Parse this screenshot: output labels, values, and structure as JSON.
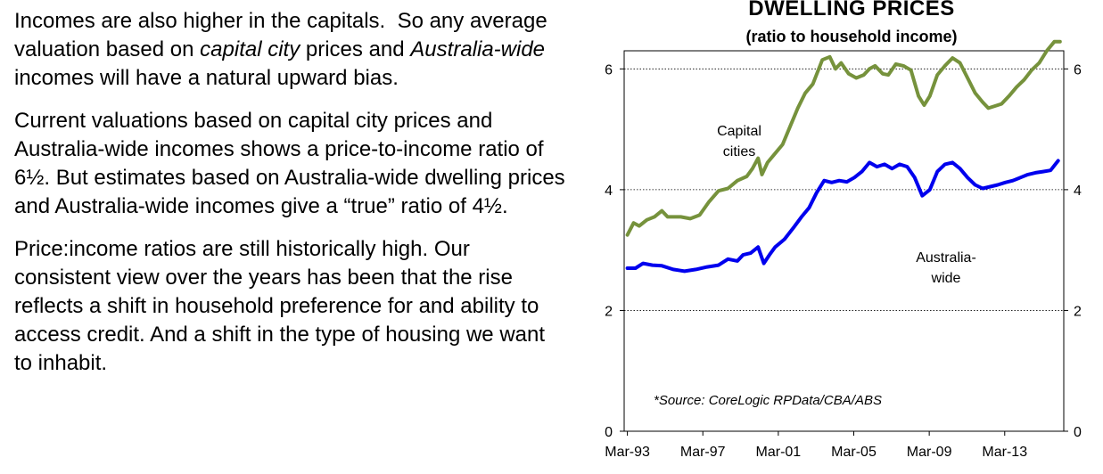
{
  "text": {
    "p1": {
      "s1": "Incomes are also higher in the capitals.  So any average valuation based on ",
      "e1": "capital city",
      "s2": " prices and ",
      "e2": "Australia-wide",
      "s3": " incomes will have a natural upward bias."
    },
    "p2": "Current valuations based on capital city prices and Australia-wide incomes shows a price-to-income ratio of 6½.  But estimates based on Australia-wide dwelling prices and Australia-wide incomes give a “true” ratio of 4½.",
    "p3": "Price:income ratios are still historically high.  Our consistent view over the years has been that the rise reflects a shift in household preference for and ability to access credit.  And a shift in the type of housing we want to inhabit."
  },
  "chart_data": {
    "type": "line",
    "title": "DWELLING PRICES",
    "subtitle": "(ratio to household income)",
    "source": "*Source: CoreLogic RPData/CBA/ABS",
    "ylim": [
      0,
      6.3
    ],
    "xlim": [
      1993.0,
      2016.3
    ],
    "y_ticks": [
      0,
      2,
      4,
      6
    ],
    "x_ticks": [
      {
        "label": "Mar-93",
        "value": 1993.17
      },
      {
        "label": "Mar-97",
        "value": 1997.17
      },
      {
        "label": "Mar-01",
        "value": 2001.17
      },
      {
        "label": "Mar-05",
        "value": 2005.17
      },
      {
        "label": "Mar-09",
        "value": 2009.17
      },
      {
        "label": "Mar-13",
        "value": 2013.17
      }
    ],
    "colors": {
      "capital": "#76923c",
      "australia": "#0000ee"
    },
    "series": [
      {
        "name": "Capital cities",
        "label_lines": [
          "Capital",
          "cities"
        ],
        "points": [
          [
            1993.17,
            3.25
          ],
          [
            1993.5,
            3.45
          ],
          [
            1993.8,
            3.4
          ],
          [
            1994.2,
            3.5
          ],
          [
            1994.6,
            3.55
          ],
          [
            1995.0,
            3.65
          ],
          [
            1995.3,
            3.55
          ],
          [
            1995.6,
            3.55
          ],
          [
            1996.0,
            3.55
          ],
          [
            1996.5,
            3.52
          ],
          [
            1997.0,
            3.58
          ],
          [
            1997.5,
            3.8
          ],
          [
            1998.0,
            3.98
          ],
          [
            1998.5,
            4.02
          ],
          [
            1999.0,
            4.15
          ],
          [
            1999.5,
            4.22
          ],
          [
            1999.8,
            4.35
          ],
          [
            2000.1,
            4.52
          ],
          [
            2000.3,
            4.25
          ],
          [
            2000.6,
            4.45
          ],
          [
            2001.0,
            4.6
          ],
          [
            2001.4,
            4.75
          ],
          [
            2001.8,
            5.05
          ],
          [
            2002.2,
            5.35
          ],
          [
            2002.6,
            5.6
          ],
          [
            2003.0,
            5.75
          ],
          [
            2003.5,
            6.15
          ],
          [
            2003.9,
            6.2
          ],
          [
            2004.2,
            6.0
          ],
          [
            2004.5,
            6.1
          ],
          [
            2004.9,
            5.92
          ],
          [
            2005.3,
            5.85
          ],
          [
            2005.7,
            5.9
          ],
          [
            2006.0,
            6.0
          ],
          [
            2006.3,
            6.05
          ],
          [
            2006.7,
            5.92
          ],
          [
            2007.0,
            5.9
          ],
          [
            2007.4,
            6.08
          ],
          [
            2007.8,
            6.05
          ],
          [
            2008.2,
            5.98
          ],
          [
            2008.6,
            5.55
          ],
          [
            2008.9,
            5.4
          ],
          [
            2009.2,
            5.55
          ],
          [
            2009.6,
            5.9
          ],
          [
            2010.0,
            6.05
          ],
          [
            2010.4,
            6.18
          ],
          [
            2010.8,
            6.1
          ],
          [
            2011.2,
            5.85
          ],
          [
            2011.6,
            5.6
          ],
          [
            2012.0,
            5.45
          ],
          [
            2012.3,
            5.35
          ],
          [
            2012.6,
            5.38
          ],
          [
            2013.0,
            5.42
          ],
          [
            2013.4,
            5.55
          ],
          [
            2013.8,
            5.7
          ],
          [
            2014.2,
            5.82
          ],
          [
            2014.6,
            5.98
          ],
          [
            2015.0,
            6.1
          ],
          [
            2015.4,
            6.3
          ],
          [
            2015.8,
            6.45
          ],
          [
            2016.1,
            6.45
          ]
        ]
      },
      {
        "name": "Australia-wide",
        "label_lines": [
          "Australia-",
          "wide"
        ],
        "points": [
          [
            1993.17,
            2.7
          ],
          [
            1993.6,
            2.7
          ],
          [
            1994.0,
            2.78
          ],
          [
            1994.5,
            2.75
          ],
          [
            1995.0,
            2.74
          ],
          [
            1995.6,
            2.68
          ],
          [
            1996.2,
            2.65
          ],
          [
            1996.8,
            2.68
          ],
          [
            1997.4,
            2.72
          ],
          [
            1998.0,
            2.75
          ],
          [
            1998.5,
            2.85
          ],
          [
            1999.0,
            2.82
          ],
          [
            1999.3,
            2.92
          ],
          [
            1999.7,
            2.95
          ],
          [
            2000.1,
            3.05
          ],
          [
            2000.4,
            2.78
          ],
          [
            2000.7,
            2.92
          ],
          [
            2001.0,
            3.05
          ],
          [
            2001.5,
            3.18
          ],
          [
            2002.0,
            3.38
          ],
          [
            2002.4,
            3.55
          ],
          [
            2002.8,
            3.7
          ],
          [
            2003.2,
            3.95
          ],
          [
            2003.6,
            4.15
          ],
          [
            2004.0,
            4.12
          ],
          [
            2004.4,
            4.15
          ],
          [
            2004.8,
            4.13
          ],
          [
            2005.2,
            4.2
          ],
          [
            2005.6,
            4.3
          ],
          [
            2006.0,
            4.45
          ],
          [
            2006.4,
            4.38
          ],
          [
            2006.8,
            4.42
          ],
          [
            2007.2,
            4.35
          ],
          [
            2007.6,
            4.42
          ],
          [
            2008.0,
            4.38
          ],
          [
            2008.4,
            4.2
          ],
          [
            2008.8,
            3.9
          ],
          [
            2009.2,
            4.0
          ],
          [
            2009.6,
            4.3
          ],
          [
            2010.0,
            4.42
          ],
          [
            2010.4,
            4.45
          ],
          [
            2010.8,
            4.35
          ],
          [
            2011.2,
            4.2
          ],
          [
            2011.6,
            4.08
          ],
          [
            2012.0,
            4.02
          ],
          [
            2012.4,
            4.05
          ],
          [
            2012.8,
            4.08
          ],
          [
            2013.2,
            4.12
          ],
          [
            2013.6,
            4.15
          ],
          [
            2014.0,
            4.2
          ],
          [
            2014.4,
            4.25
          ],
          [
            2014.8,
            4.28
          ],
          [
            2015.2,
            4.3
          ],
          [
            2015.6,
            4.32
          ],
          [
            2016.0,
            4.48
          ]
        ]
      }
    ]
  }
}
